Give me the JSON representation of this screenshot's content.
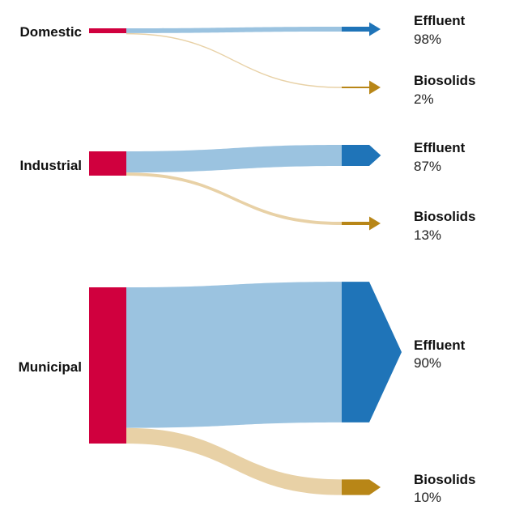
{
  "chart_data": {
    "type": "sankey",
    "colors": {
      "source": "#d0003e",
      "effluent_link": "#9bc3e0",
      "effluent_node": "#1f74b8",
      "biosolids_link": "#e8d1a6",
      "biosolids_node": "#b88617"
    },
    "flows": [
      {
        "source": "Domestic",
        "targets": [
          {
            "type": "effluent",
            "label": "Effluent",
            "value": 98,
            "pct": "98%"
          },
          {
            "type": "biosolids",
            "label": "Biosolids",
            "value": 2,
            "pct": "2%"
          }
        ]
      },
      {
        "source": "Industrial",
        "targets": [
          {
            "type": "effluent",
            "label": "Effluent",
            "value": 87,
            "pct": "87%"
          },
          {
            "type": "biosolids",
            "label": "Biosolids",
            "value": 13,
            "pct": "13%"
          }
        ]
      },
      {
        "source": "Municipal",
        "targets": [
          {
            "type": "effluent",
            "label": "Effluent",
            "value": 90,
            "pct": "90%"
          },
          {
            "type": "biosolids",
            "label": "Biosolids",
            "value": 10,
            "pct": "10%"
          }
        ]
      }
    ]
  }
}
